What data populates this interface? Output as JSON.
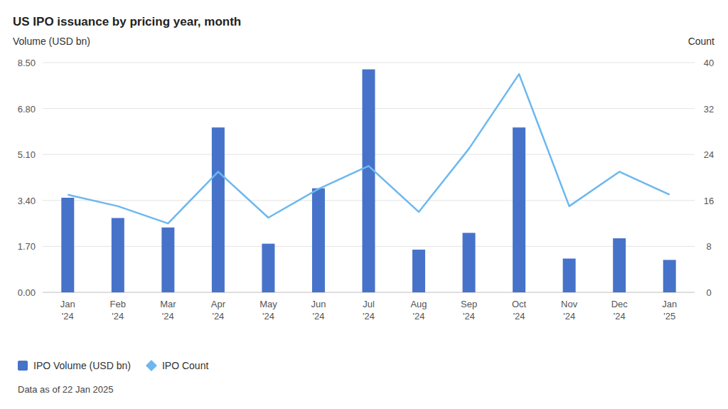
{
  "chart_data": {
    "type": "bar",
    "title": "US IPO issuance by pricing year, month",
    "ylabel": "Volume (USD bn)",
    "y2label": "Count",
    "note": "Data as of 22 Jan 2025",
    "categories": [
      "Jan '24",
      "Feb '24",
      "Mar '24",
      "Apr '24",
      "May '24",
      "Jun '24",
      "Jul '24",
      "Aug '24",
      "Sep '24",
      "Oct '24",
      "Nov '24",
      "Dec '24",
      "Jan '25"
    ],
    "series": [
      {
        "name": "IPO Volume (USD bn)",
        "type": "bar",
        "color": "#4673c9",
        "values": [
          3.5,
          2.75,
          2.4,
          6.1,
          1.8,
          3.85,
          8.25,
          1.58,
          2.2,
          6.1,
          1.25,
          2.0,
          1.2
        ]
      },
      {
        "name": "IPO Count",
        "type": "line",
        "color": "#6cb8ef",
        "axis": "y2",
        "values": [
          17,
          15,
          12,
          21,
          13,
          18,
          22,
          14,
          25,
          38,
          15,
          21,
          17
        ]
      }
    ],
    "ylim": [
      0,
      8.5
    ],
    "yticks": [
      {
        "value": 0,
        "label": "0.00"
      },
      {
        "value": 1.7,
        "label": "1.70"
      },
      {
        "value": 3.4,
        "label": "3.40"
      },
      {
        "value": 5.1,
        "label": "5.10"
      },
      {
        "value": 6.8,
        "label": "6.80"
      },
      {
        "value": 8.5,
        "label": "8.50"
      }
    ],
    "y2lim": [
      0,
      40
    ],
    "y2ticks": [
      0,
      8,
      16,
      24,
      32,
      40
    ],
    "grid": true,
    "legend": "bottom-left"
  }
}
